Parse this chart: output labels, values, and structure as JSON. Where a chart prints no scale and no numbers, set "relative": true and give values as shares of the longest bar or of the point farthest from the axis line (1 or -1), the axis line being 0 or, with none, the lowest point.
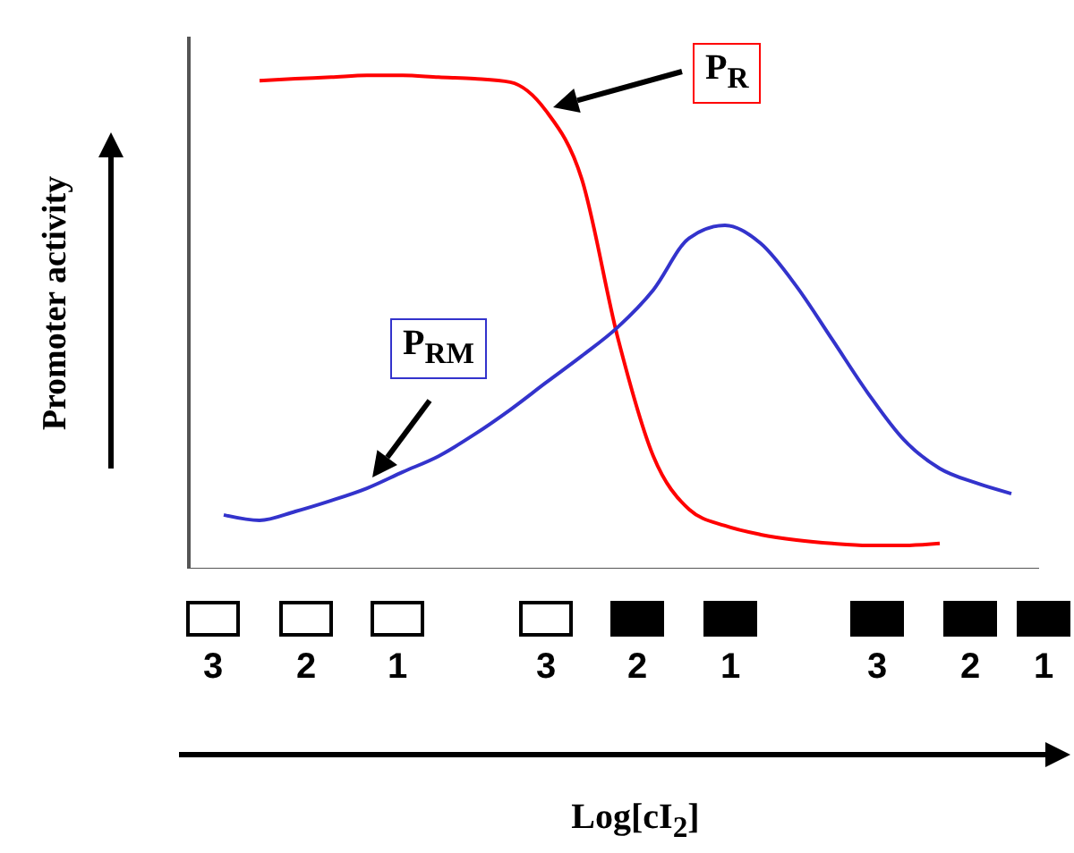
{
  "chart_data": {
    "type": "line",
    "relative": true,
    "ylabel": "Promoter activity",
    "legend": false,
    "categories": [
      null,
      null,
      null,
      null,
      null,
      null,
      null,
      null,
      null,
      null,
      null,
      null,
      null,
      null,
      null,
      null,
      null,
      null,
      null,
      null,
      null,
      null,
      null
    ],
    "series": [
      {
        "name": "P$_{R}$",
        "color": "#ff0000",
        "values": [
          null,
          0.989,
          0.993,
          0.996,
          1,
          1,
          0.996,
          0.993,
          0.986,
          0.928,
          0.79,
          0.47,
          0.228,
          0.12,
          0.087,
          0.069,
          0.058,
          0.051,
          0.047,
          0.047,
          0.051,
          null,
          null
        ]
      },
      {
        "name": "P$_{RM}$",
        "color": "#3333cc",
        "values": [
          0.109,
          0.098,
          0.116,
          0.138,
          0.163,
          0.196,
          0.228,
          0.272,
          0.322,
          0.377,
          0.431,
          0.489,
          0.565,
          0.67,
          0.696,
          0.659,
          0.572,
          0.464,
          0.355,
          0.261,
          0.203,
          0.174,
          0.152
        ]
      }
    ],
    "annotations": [
      "Log[cI$_{2}$]",
      "3",
      "2",
      "1",
      "3",
      "2",
      "1",
      "3",
      "2",
      "1"
    ]
  }
}
